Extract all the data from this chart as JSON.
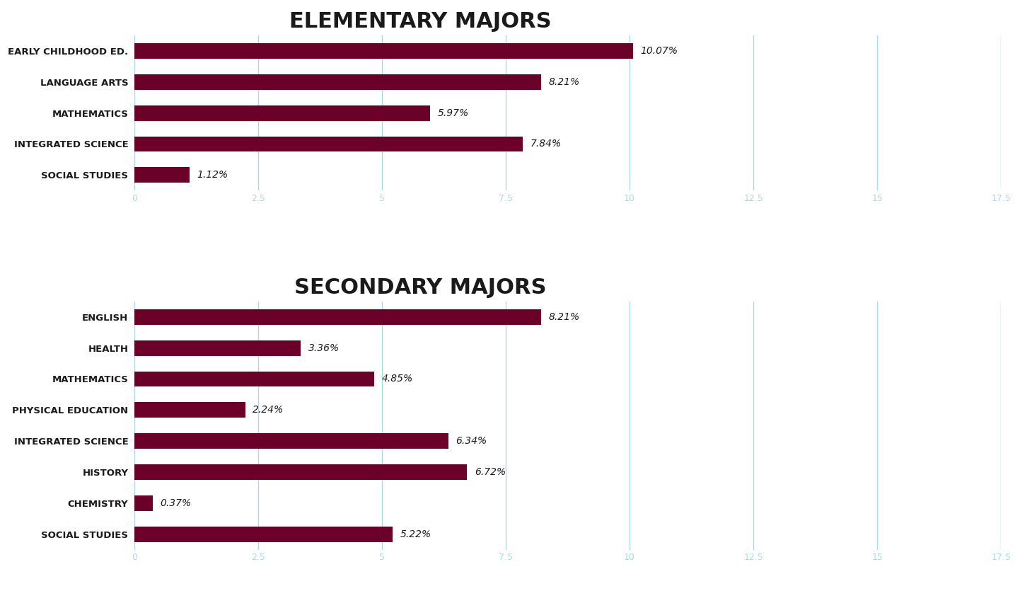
{
  "elementary": {
    "title": "ELEMENTARY MAJORS",
    "categories": [
      "EARLY CHILDHOOD ED.",
      "LANGUAGE ARTS",
      "MATHEMATICS",
      "INTEGRATED SCIENCE",
      "SOCIAL STUDIES"
    ],
    "values": [
      10.07,
      8.21,
      5.97,
      7.84,
      1.12
    ],
    "labels": [
      "10.07%",
      "8.21%",
      "5.97%",
      "7.84%",
      "1.12%"
    ]
  },
  "secondary": {
    "title": "SECONDARY MAJORS",
    "categories": [
      "ENGLISH",
      "HEALTH",
      "MATHEMATICS",
      "PHYSICAL EDUCATION",
      "INTEGRATED SCIENCE",
      "HISTORY",
      "CHEMISTRY",
      "SOCIAL STUDIES"
    ],
    "values": [
      8.21,
      3.36,
      4.85,
      2.24,
      6.34,
      6.72,
      0.37,
      5.22
    ],
    "labels": [
      "8.21%",
      "3.36%",
      "4.85%",
      "2.24%",
      "6.34%",
      "6.72%",
      "0.37%",
      "5.22%"
    ]
  },
  "bar_color": "#6B0028",
  "label_color": "#1a1a1a",
  "grid_color": "#ADD8E6",
  "background_color": "#FFFFFF",
  "xlim": [
    0,
    17.5
  ],
  "xticks": [
    0,
    2.5,
    5,
    7.5,
    10,
    12.5,
    15,
    17.5
  ],
  "title_fontsize": 22,
  "label_fontsize": 9.5,
  "value_fontsize": 10,
  "tick_label_color": "#ADD8E6",
  "tick_fontsize": 9
}
